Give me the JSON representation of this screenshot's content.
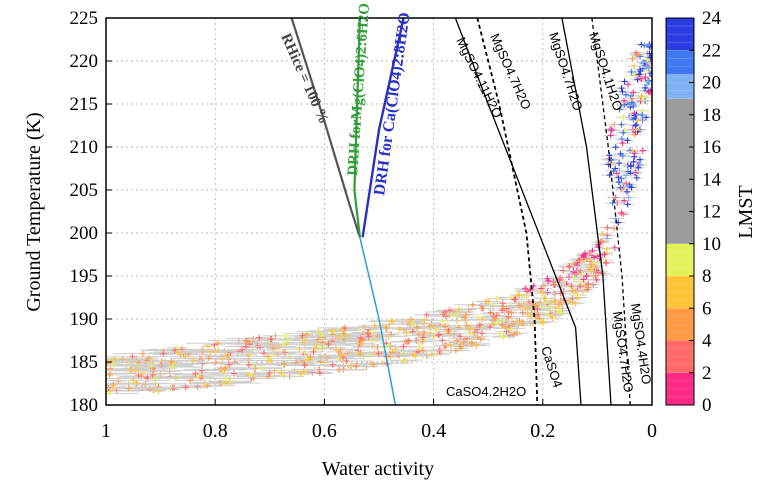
{
  "chart_data": {
    "type": "scatter",
    "xlabel": "Water activity",
    "ylabel": "Ground Temperature (K)",
    "xlim": [
      1,
      0
    ],
    "ylim": [
      180,
      225
    ],
    "xticks": [
      "1",
      "0.8",
      "0.6",
      "0.4",
      "0.2",
      "0"
    ],
    "yticks": [
      "180",
      "185",
      "190",
      "195",
      "200",
      "205",
      "210",
      "215",
      "220",
      "225"
    ],
    "grid": true,
    "colorbar": {
      "label": "LMST",
      "ticks": [
        "0",
        "2",
        "4",
        "6",
        "8",
        "10",
        "12",
        "14",
        "16",
        "18",
        "20",
        "22",
        "24"
      ],
      "range": [
        0,
        24
      ],
      "bands": [
        {
          "from": 0,
          "to": 2,
          "color": "#ff2a86"
        },
        {
          "from": 2,
          "to": 4,
          "color": "#ff6a68"
        },
        {
          "from": 4,
          "to": 6,
          "color": "#ff9a45"
        },
        {
          "from": 6,
          "to": 8,
          "color": "#ffc53a"
        },
        {
          "from": 8,
          "to": 10,
          "color": "#e2f25a"
        },
        {
          "from": 10,
          "to": 19,
          "color": "#9c9c9c"
        },
        {
          "from": 19,
          "to": 20.5,
          "color": "#7fb2f2"
        },
        {
          "from": 20.5,
          "to": 22,
          "color": "#3f78ef"
        },
        {
          "from": 22,
          "to": 24,
          "color": "#2b3de2"
        }
      ]
    },
    "curves": [
      {
        "label": "RHice = 100 %",
        "color": "#555555",
        "width": 2.2,
        "dash": "",
        "points": [
          [
            0.66,
            225
          ],
          [
            0.6,
            213
          ],
          [
            0.555,
            203.5
          ],
          [
            0.535,
            199.5
          ]
        ]
      },
      {
        "label": "",
        "color": "#2a9fd6",
        "width": 1.5,
        "dash": "",
        "points": [
          [
            0.535,
            199.5
          ],
          [
            0.5,
            190
          ],
          [
            0.47,
            180
          ]
        ]
      },
      {
        "label": "DRH forMg(ClO4)2:6H2O",
        "color": "#2e9e36",
        "width": 2.2,
        "dash": "",
        "points": [
          [
            0.535,
            225
          ],
          [
            0.545,
            205
          ],
          [
            0.535,
            199.5
          ]
        ]
      },
      {
        "label": "DRH for Ca(ClO4)2:8H2O",
        "color": "#2830c6",
        "width": 2.4,
        "dash": "",
        "points": [
          [
            0.455,
            225
          ],
          [
            0.5,
            212
          ],
          [
            0.53,
            199.5
          ]
        ]
      },
      {
        "label": "MgSO4.11H2O",
        "color": "#000000",
        "width": 1.3,
        "dash": "",
        "points": [
          [
            0.36,
            225
          ],
          [
            0.3,
            215
          ],
          [
            0.195,
            198
          ],
          [
            0.14,
            189
          ],
          [
            0.13,
            180
          ]
        ]
      },
      {
        "label": "MgSO4.7H2O",
        "color": "#000000",
        "width": 1.8,
        "dash": "4,3",
        "points": [
          [
            0.32,
            225
          ],
          [
            0.28,
            215
          ],
          [
            0.23,
            200
          ],
          [
            0.215,
            190
          ],
          [
            0.21,
            180
          ]
        ]
      },
      {
        "label": "MgSO4.7H2O",
        "color": "#000000",
        "width": 1.3,
        "dash": "",
        "points": [
          [
            0.165,
            225
          ],
          [
            0.12,
            210
          ],
          [
            0.09,
            195
          ],
          [
            0.075,
            180
          ]
        ]
      },
      {
        "label": "MgSO4.1H2O",
        "color": "#000000",
        "width": 1.3,
        "dash": "4,3",
        "points": [
          [
            0.11,
            225
          ],
          [
            0.08,
            210
          ],
          [
            0.055,
            195
          ],
          [
            0.04,
            180
          ]
        ]
      }
    ],
    "annotations": [
      {
        "text": "CaSO4.2H2O"
      },
      {
        "text": "CaSO4"
      },
      {
        "text": "MgSO4.7H2O"
      },
      {
        "text": "MgSO4.4H2O"
      }
    ]
  }
}
